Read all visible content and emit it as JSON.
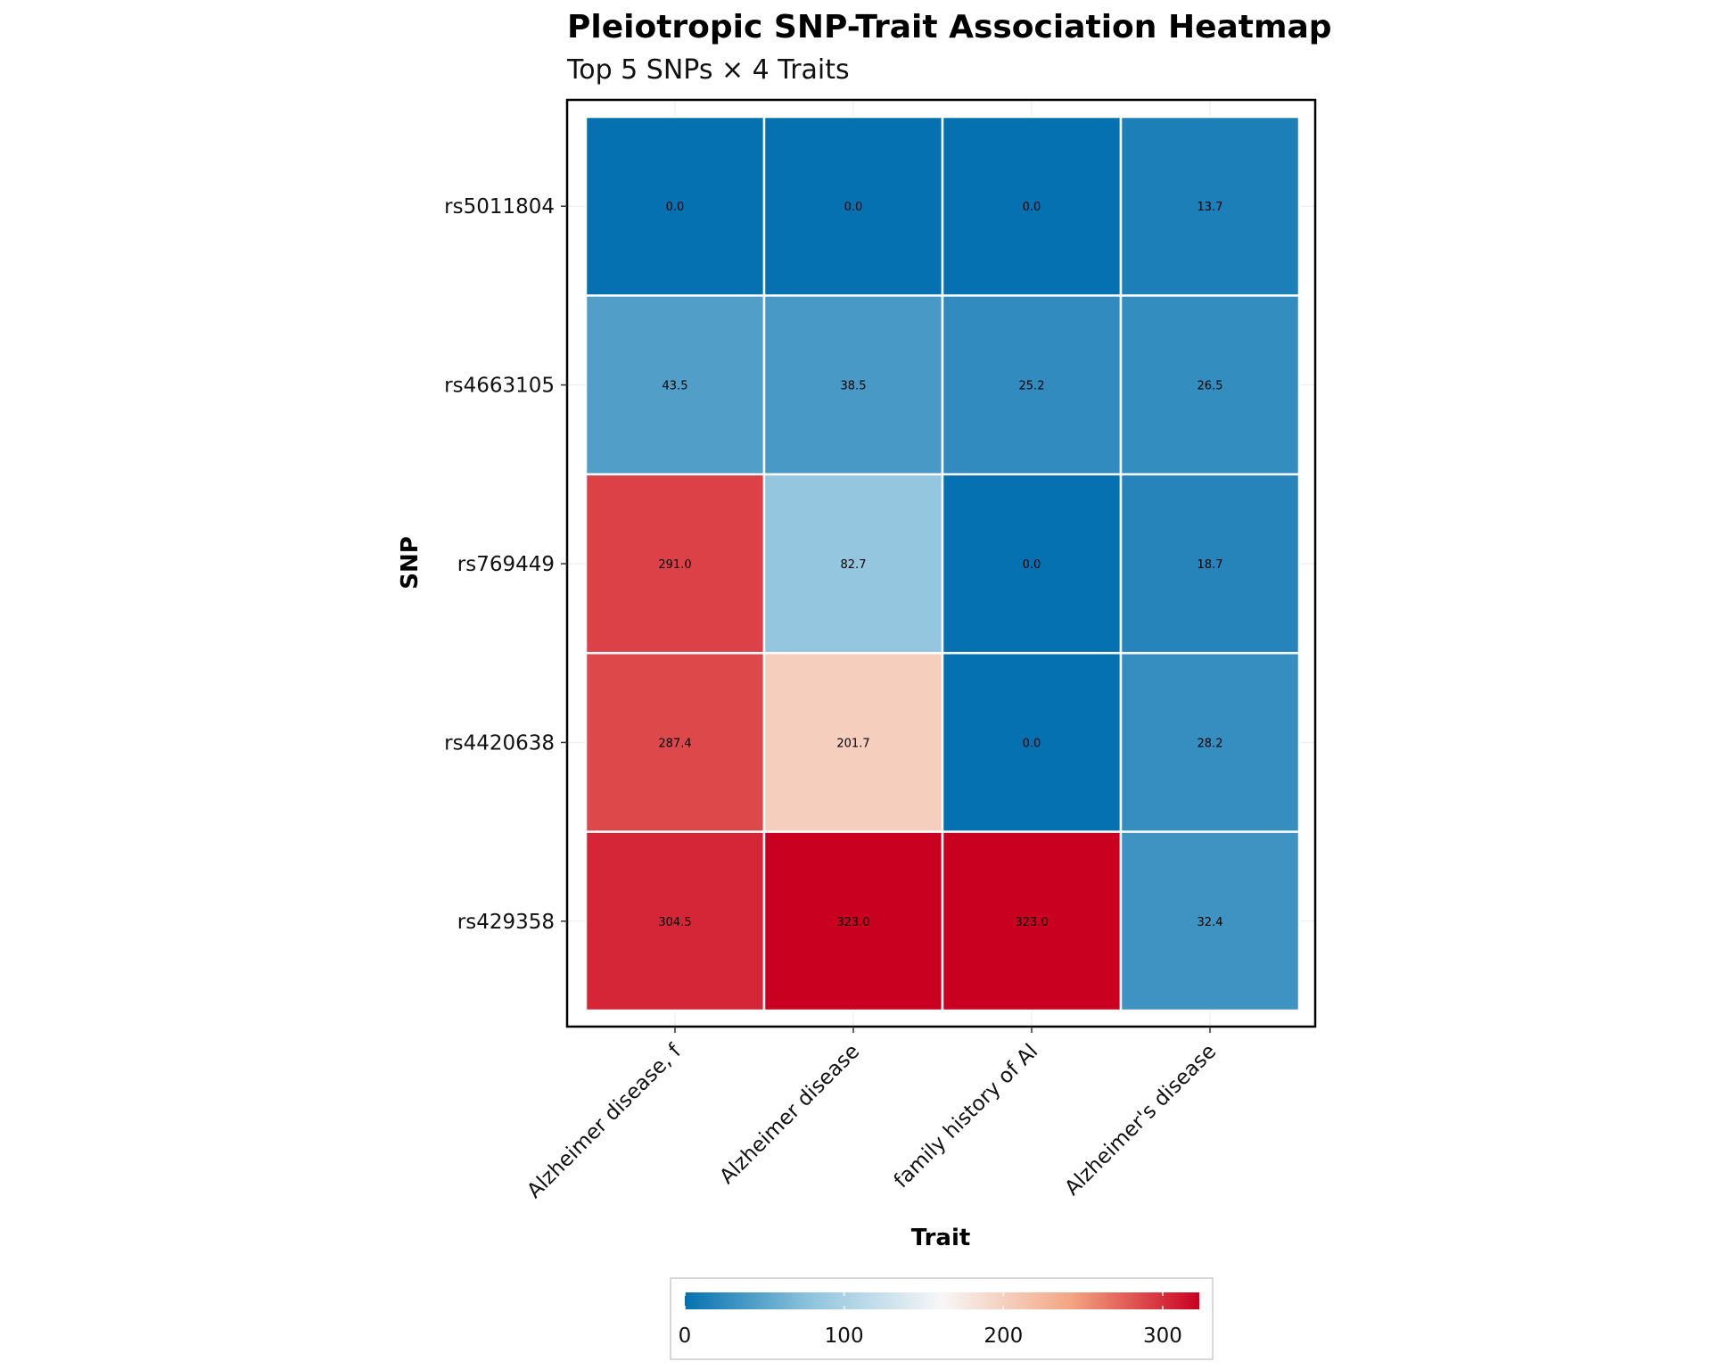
{
  "chart_data": {
    "type": "heatmap",
    "title": "Pleiotropic SNP-Trait Association Heatmap",
    "subtitle": "Top 5 SNPs × 4 Traits",
    "xlabel": "Trait",
    "ylabel": "SNP",
    "x_categories": [
      "Alzheimer disease, f",
      "Alzheimer disease",
      "family history of Al",
      "Alzheimer's disease"
    ],
    "y_categories": [
      "rs5011804",
      "rs4663105",
      "rs769449",
      "rs4420638",
      "rs429358"
    ],
    "values": [
      [
        0.0,
        0.0,
        0.0,
        13.7
      ],
      [
        43.5,
        38.5,
        25.2,
        26.5
      ],
      [
        291.0,
        82.7,
        0.0,
        18.7
      ],
      [
        287.4,
        201.7,
        0.0,
        28.2
      ],
      [
        304.5,
        323.0,
        323.0,
        32.4
      ]
    ],
    "colorbar": {
      "min": 0,
      "max": 323,
      "ticks": [
        0,
        100,
        200,
        300
      ],
      "palette": [
        "#0571b0",
        "#92c5de",
        "#f7f7f7",
        "#f4a582",
        "#ca0020"
      ]
    },
    "legend_position": "bottom"
  }
}
